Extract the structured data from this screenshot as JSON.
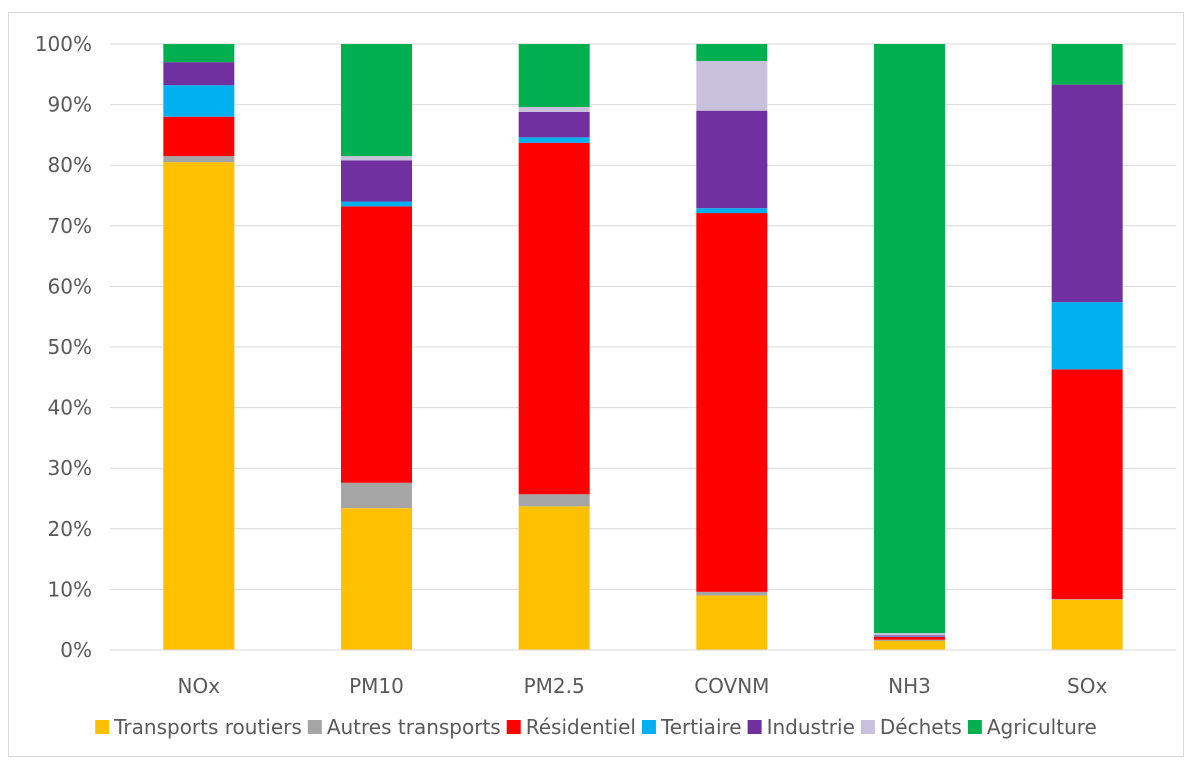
{
  "chart_data": {
    "type": "bar",
    "stacked": true,
    "percent": true,
    "categories": [
      "NOx",
      "PM10",
      "PM2.5",
      "COVNM",
      "NH3",
      "SOx"
    ],
    "y_ticks": [
      "0%",
      "10%",
      "20%",
      "30%",
      "40%",
      "50%",
      "60%",
      "70%",
      "80%",
      "90%",
      "100%"
    ],
    "ylim": [
      0,
      100
    ],
    "grid": true,
    "legend_position": "bottom",
    "series": [
      {
        "name": "Transports routiers",
        "color": "#FFC000",
        "values": [
          80.5,
          23.4,
          23.7,
          9.0,
          1.5,
          8.3
        ]
      },
      {
        "name": "Autres transports",
        "color": "#A5A5A5",
        "values": [
          1.0,
          4.2,
          2.0,
          0.6,
          0.2,
          0.1
        ]
      },
      {
        "name": "Résidentiel",
        "color": "#FF0000",
        "values": [
          6.5,
          45.6,
          58.0,
          62.5,
          0.5,
          37.9
        ]
      },
      {
        "name": "Tertiaire",
        "color": "#00B0F0",
        "values": [
          5.2,
          0.8,
          0.9,
          0.8,
          0.1,
          11.1
        ]
      },
      {
        "name": "Industrie",
        "color": "#7030A0",
        "values": [
          3.8,
          6.8,
          4.2,
          16.1,
          0.1,
          35.9
        ]
      },
      {
        "name": "Déchets",
        "color": "#C9C0DB",
        "values": [
          0.0,
          0.7,
          0.8,
          8.2,
          0.4,
          0.0
        ]
      },
      {
        "name": "Agriculture",
        "color": "#00B050",
        "values": [
          3.0,
          18.5,
          10.4,
          2.8,
          97.2,
          6.7
        ]
      }
    ]
  }
}
